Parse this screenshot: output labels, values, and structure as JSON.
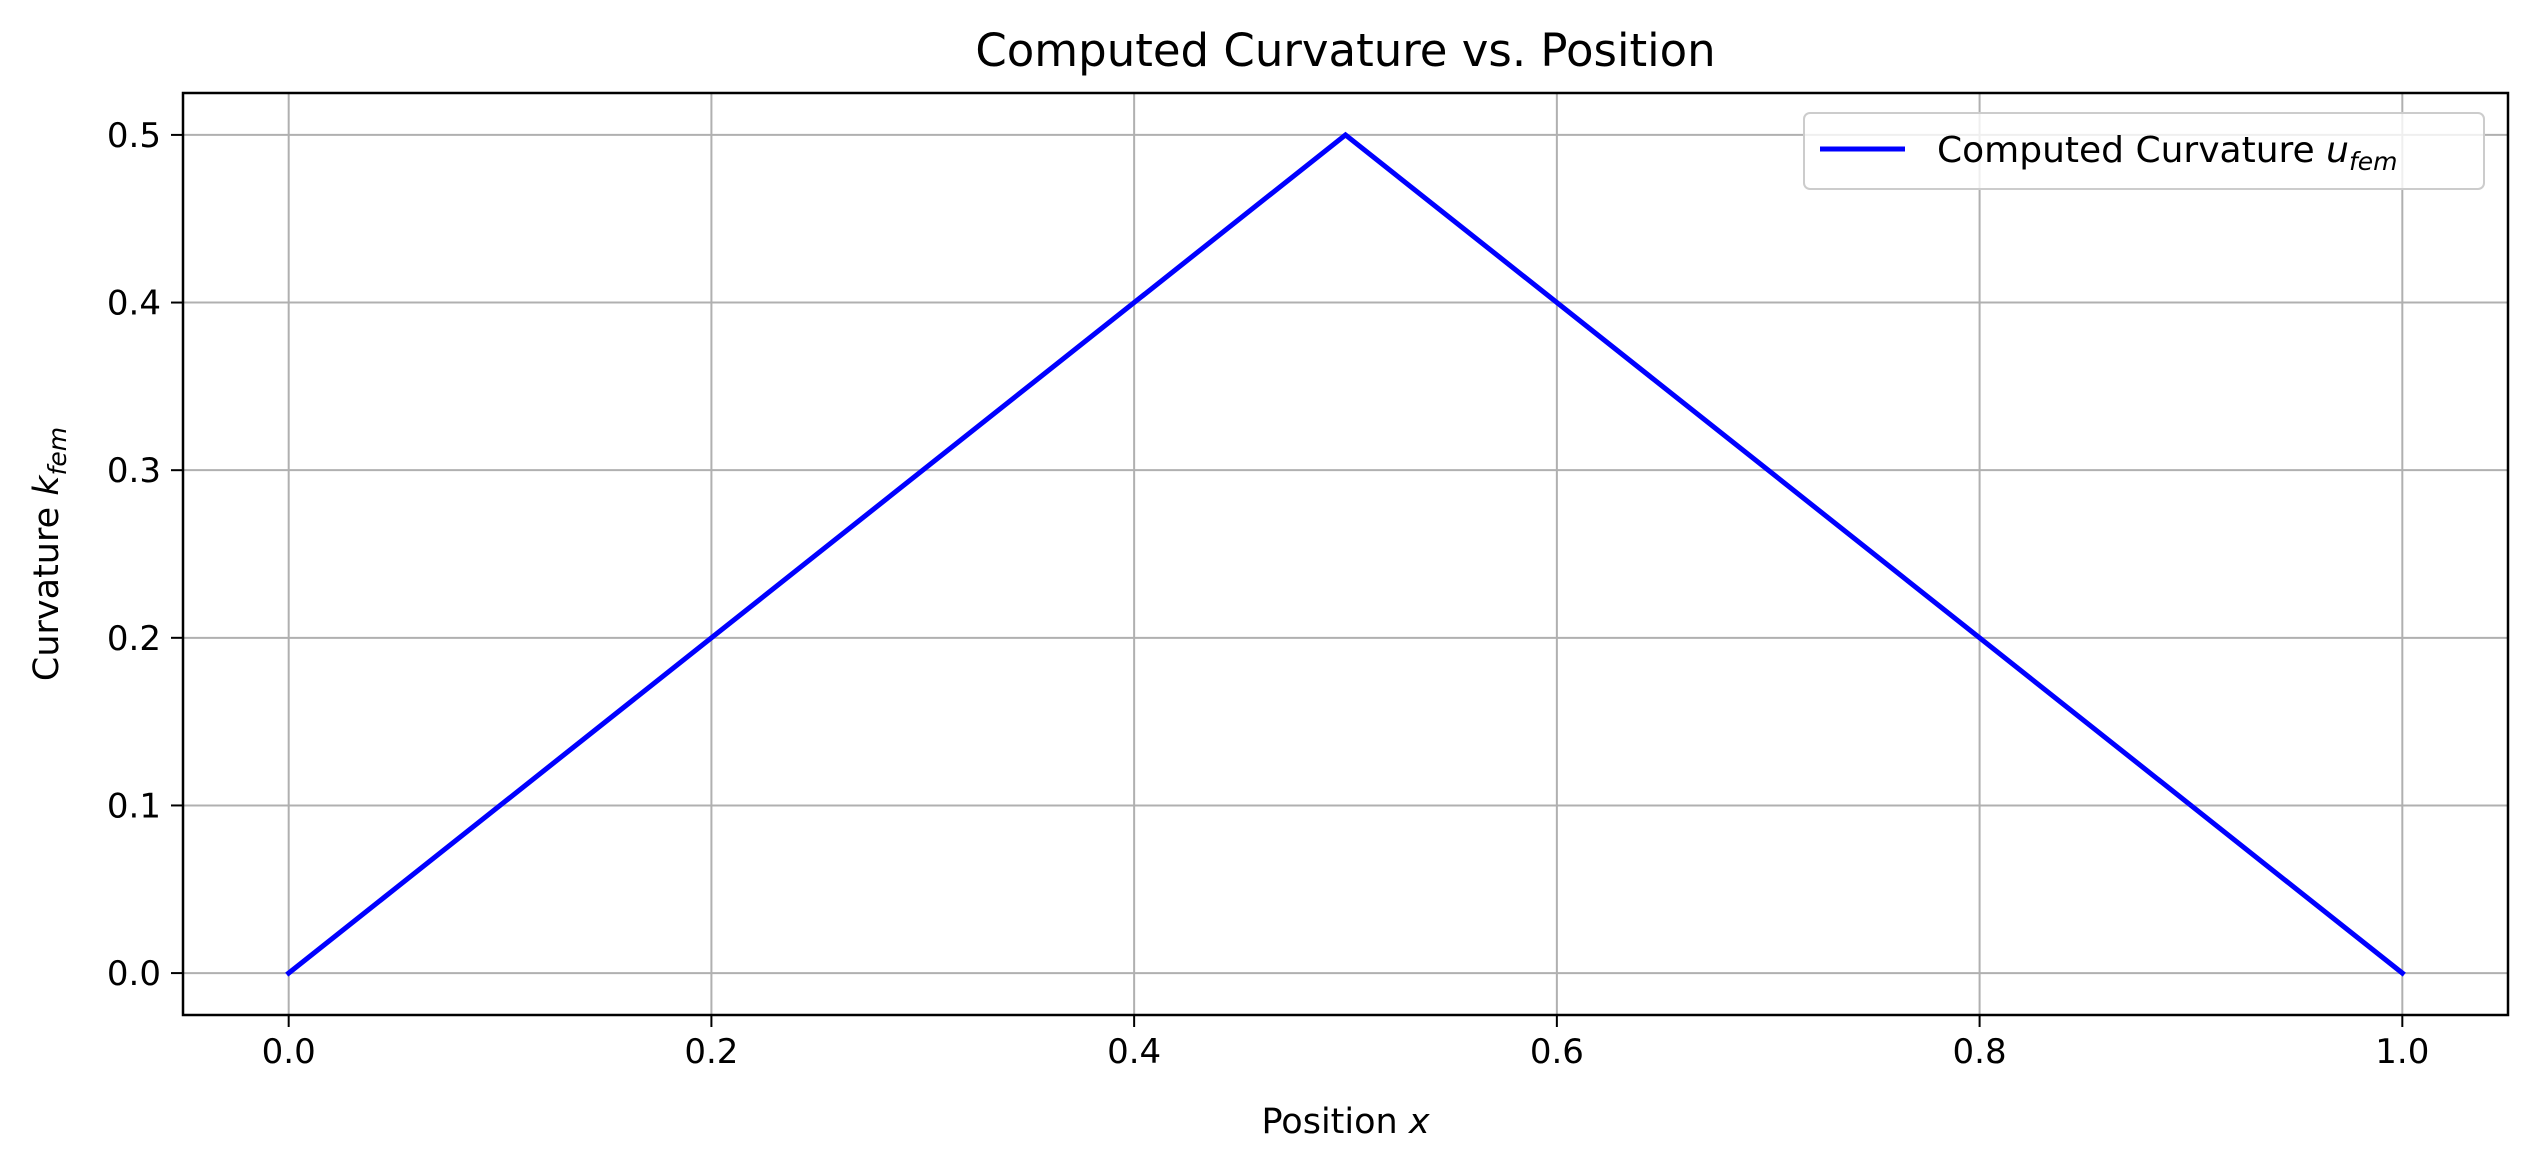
{
  "chart_data": {
    "type": "line",
    "title": "Computed Curvature vs. Position",
    "xlabel": {
      "text": "Position ",
      "var": "x"
    },
    "ylabel": {
      "text": "Curvature ",
      "var": "k",
      "sub": "fem"
    },
    "xlim": [
      -0.05,
      1.05
    ],
    "ylim": [
      -0.025,
      0.525
    ],
    "xticks": [
      0.0,
      0.2,
      0.4,
      0.6,
      0.8,
      1.0
    ],
    "xtick_labels": [
      "0.0",
      "0.2",
      "0.4",
      "0.6",
      "0.8",
      "1.0"
    ],
    "yticks": [
      0.0,
      0.1,
      0.2,
      0.3,
      0.4,
      0.5
    ],
    "ytick_labels": [
      "0.0",
      "0.1",
      "0.2",
      "0.3",
      "0.4",
      "0.5"
    ],
    "grid": true,
    "legend_position": "top-right",
    "series": [
      {
        "name": {
          "text": "Computed Curvature ",
          "var": "u",
          "sub": "fem"
        },
        "color": "#0000ff",
        "x": [
          0.0,
          0.5,
          1.0
        ],
        "y": [
          0.0,
          0.5,
          0.0
        ]
      }
    ]
  },
  "colors": {
    "grid": "#b0b0b0",
    "axes": "#000000",
    "background": "#ffffff",
    "legend_border": "#cccccc"
  }
}
